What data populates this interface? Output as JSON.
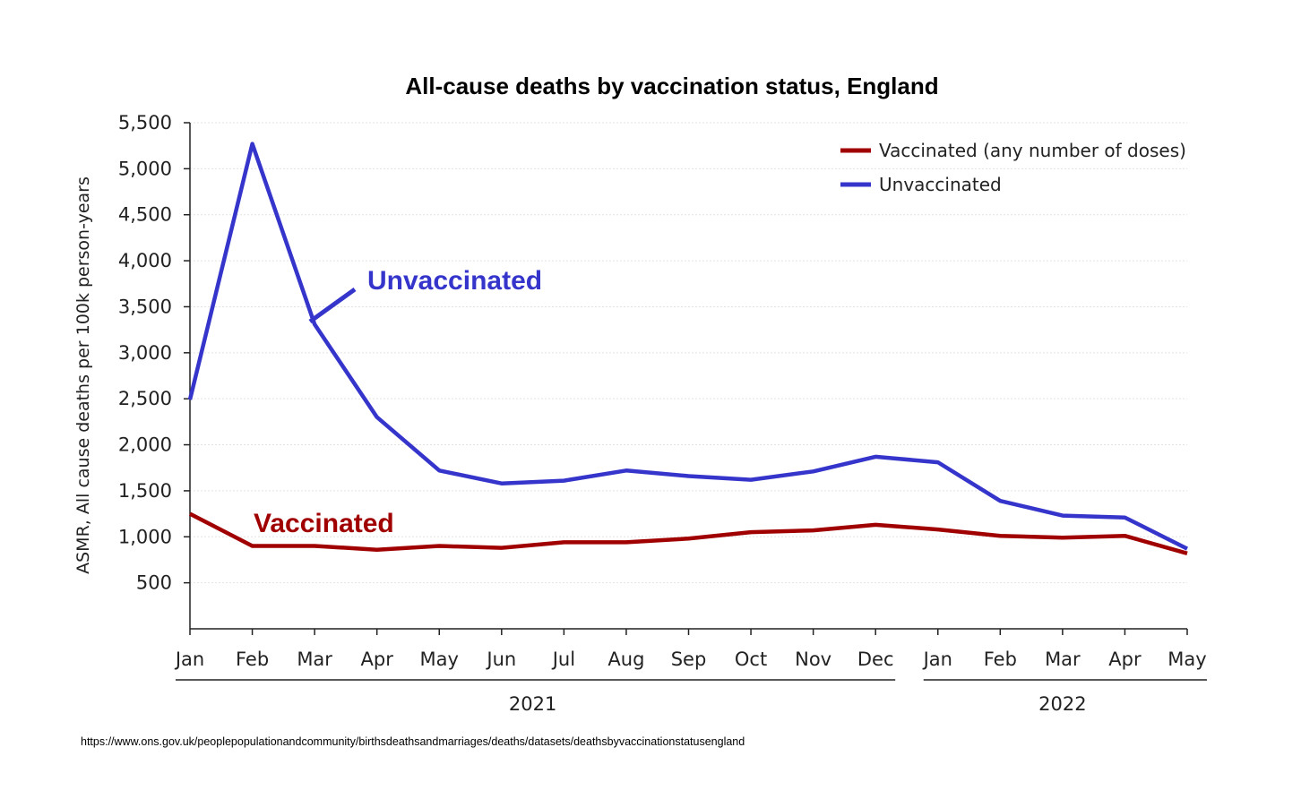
{
  "chart_data": {
    "type": "line",
    "title": "All-cause deaths by vaccination status, England",
    "ylabel": "ASMR, All cause deaths per 100k person-years",
    "xlabel": "",
    "ylim": [
      0,
      5500
    ],
    "yticks": [
      500,
      1000,
      1500,
      2000,
      2500,
      3000,
      3500,
      4000,
      4500,
      5000,
      5500
    ],
    "ytick_labels": [
      "500",
      "1,000",
      "1,500",
      "2,000",
      "2,500",
      "3,000",
      "3,500",
      "4,000",
      "4,500",
      "5,000",
      "5,500"
    ],
    "categories": [
      "Jan",
      "Feb",
      "Mar",
      "Apr",
      "May",
      "Jun",
      "Jul",
      "Aug",
      "Sep",
      "Oct",
      "Nov",
      "Dec",
      "Jan",
      "Feb",
      "Mar",
      "Apr",
      "May"
    ],
    "year_groups": [
      {
        "label": "2021",
        "start": 0,
        "end": 11
      },
      {
        "label": "2022",
        "start": 12,
        "end": 16
      }
    ],
    "series": [
      {
        "name": "Vaccinated (any number of doses)",
        "color": "#a00000",
        "values": [
          1250,
          900,
          900,
          860,
          900,
          880,
          940,
          940,
          980,
          1050,
          1070,
          1130,
          1080,
          1010,
          990,
          1010,
          820
        ]
      },
      {
        "name": "Unvaccinated",
        "color": "#3535cc",
        "values": [
          2490,
          5270,
          3310,
          2300,
          1720,
          1580,
          1610,
          1720,
          1660,
          1620,
          1710,
          1870,
          1810,
          1390,
          1230,
          1210,
          870
        ]
      }
    ],
    "legend_position": "top-right",
    "grid": "horizontal dotted",
    "annotations": [
      {
        "text": "Unvaccinated",
        "color": "#3535cc",
        "series": "Unvaccinated"
      },
      {
        "text": "Vaccinated",
        "color": "#a00000",
        "series": "Vaccinated (any number of doses)"
      }
    ]
  },
  "source": "https://www.ons.gov.uk/peoplepopulationandcommunity/birthsdeathsandmarriages/deaths/datasets/deathsbyvaccinationstatusengland"
}
